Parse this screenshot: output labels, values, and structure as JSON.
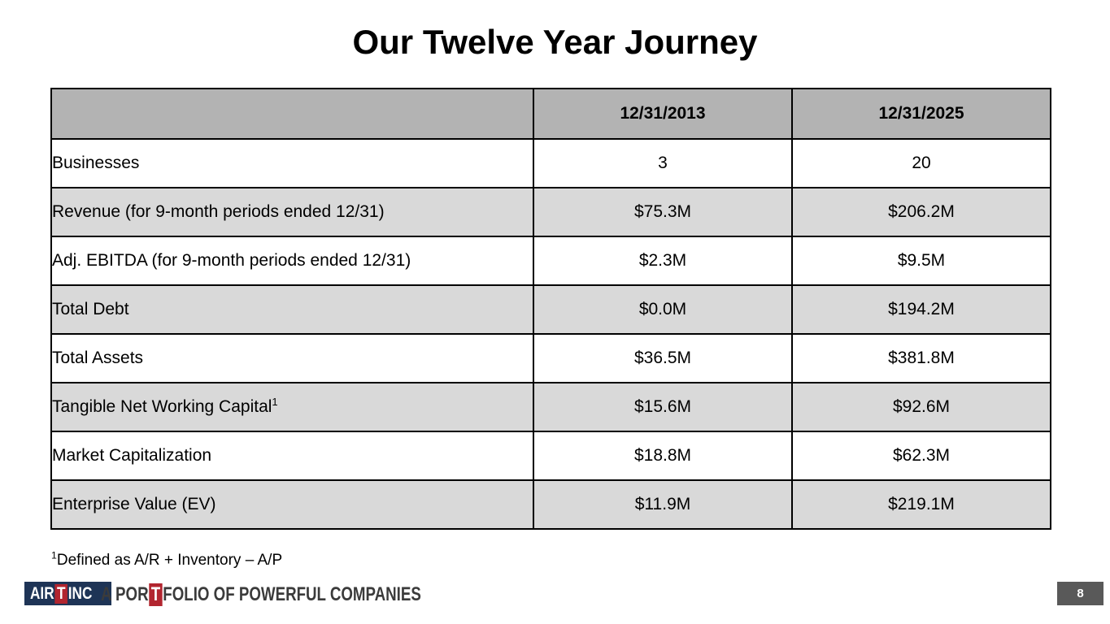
{
  "slide": {
    "title": "Our Twelve Year Journey",
    "page_number": "8",
    "footnote_superscript": "1",
    "footnote": "Defined as A/R + Inventory – A/P"
  },
  "table": {
    "columns": [
      "",
      "12/31/2013",
      "12/31/2025"
    ],
    "rows": [
      {
        "label": "Businesses",
        "label_superscript": "",
        "v2013": "3",
        "v2025": "20"
      },
      {
        "label": "Revenue (for 9-month periods ended 12/31)",
        "label_superscript": "",
        "v2013": "$75.3M",
        "v2025": "$206.2M"
      },
      {
        "label": "Adj. EBITDA (for 9-month periods ended 12/31)",
        "label_superscript": "",
        "v2013": "$2.3M",
        "v2025": "$9.5M"
      },
      {
        "label": "Total Debt",
        "label_superscript": "",
        "v2013": "$0.0M",
        "v2025": "$194.2M"
      },
      {
        "label": "Total Assets",
        "label_superscript": "",
        "v2013": "$36.5M",
        "v2025": "$381.8M"
      },
      {
        "label": "Tangible Net Working Capital",
        "label_superscript": "1",
        "v2013": "$15.6M",
        "v2025": "$92.6M"
      },
      {
        "label": "Market Capitalization",
        "label_superscript": "",
        "v2013": "$18.8M",
        "v2025": "$62.3M"
      },
      {
        "label": "Enterprise Value (EV)",
        "label_superscript": "",
        "v2013": "$11.9M",
        "v2025": "$219.1M"
      }
    ]
  },
  "footer": {
    "logo": {
      "part1": "AIR",
      "t": "T",
      "part2": "INC"
    },
    "tagline": {
      "part1": "A POR",
      "t": "T",
      "part2": "FOLIO OF POWERFUL COMPANIES"
    }
  },
  "colors": {
    "header_cell_gray": "#b3b3b3",
    "striped_row_gray": "#d9d9d9",
    "table_border": "#000000",
    "logo_navy": "#1e3456",
    "logo_red": "#b2252f",
    "tagline_text": "#3b3b3b",
    "page_badge_gray": "#595959"
  }
}
